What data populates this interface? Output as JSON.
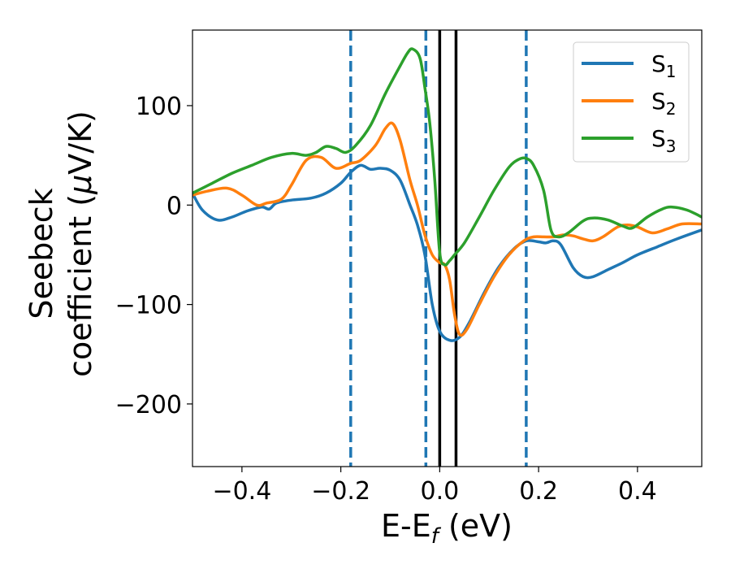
{
  "chart_data": {
    "type": "line",
    "xlabel": "E-E_f (eV)",
    "xlabel_parts": {
      "main": "E-E",
      "sub": "f",
      "tail": " (eV)"
    },
    "ylabel_line1": "Seebeck",
    "ylabel_line2_a": "coefficient  (",
    "ylabel_mu": "μ",
    "ylabel_line2_b": "V/K)",
    "xlim": [
      -0.5,
      0.53
    ],
    "ylim": [
      -263,
      176
    ],
    "xticks": [
      -0.4,
      -0.2,
      0.0,
      0.2,
      0.4
    ],
    "xtick_labels": [
      "−0.4",
      "−0.2",
      "0.0",
      "0.2",
      "0.4"
    ],
    "yticks": [
      100,
      0,
      -100,
      -200
    ],
    "ytick_labels": [
      "100",
      "0",
      "−100",
      "−200"
    ],
    "legend_position": "top-right",
    "vlines": [
      {
        "x": -0.18,
        "style": "dashed",
        "color": "#1f77b4"
      },
      {
        "x": -0.028,
        "style": "dashed",
        "color": "#1f77b4"
      },
      {
        "x": 0.175,
        "style": "dashed",
        "color": "#1f77b4"
      },
      {
        "x": 0.0,
        "style": "solid",
        "color": "#000000"
      },
      {
        "x": 0.033,
        "style": "solid",
        "color": "#000000"
      }
    ],
    "series": [
      {
        "name": "S1",
        "label_main": "S",
        "label_sub": "1",
        "color": "#1f77b4",
        "points": [
          [
            -0.5,
            12
          ],
          [
            -0.48,
            -5
          ],
          [
            -0.45,
            -15
          ],
          [
            -0.42,
            -12
          ],
          [
            -0.39,
            -6
          ],
          [
            -0.36,
            -2
          ],
          [
            -0.345,
            -4
          ],
          [
            -0.33,
            2
          ],
          [
            -0.3,
            5
          ],
          [
            -0.26,
            7
          ],
          [
            -0.23,
            12
          ],
          [
            -0.2,
            22
          ],
          [
            -0.18,
            33
          ],
          [
            -0.16,
            40
          ],
          [
            -0.14,
            36
          ],
          [
            -0.12,
            37
          ],
          [
            -0.1,
            35
          ],
          [
            -0.08,
            25
          ],
          [
            -0.06,
            0
          ],
          [
            -0.045,
            -20
          ],
          [
            -0.03,
            -50
          ],
          [
            -0.015,
            -100
          ],
          [
            0.0,
            -127
          ],
          [
            0.02,
            -136
          ],
          [
            0.04,
            -133
          ],
          [
            0.06,
            -118
          ],
          [
            0.09,
            -88
          ],
          [
            0.12,
            -62
          ],
          [
            0.15,
            -44
          ],
          [
            0.175,
            -36
          ],
          [
            0.2,
            -37
          ],
          [
            0.215,
            -38
          ],
          [
            0.23,
            -36
          ],
          [
            0.245,
            -40
          ],
          [
            0.27,
            -63
          ],
          [
            0.29,
            -72
          ],
          [
            0.31,
            -72
          ],
          [
            0.34,
            -65
          ],
          [
            0.37,
            -58
          ],
          [
            0.4,
            -50
          ],
          [
            0.44,
            -42
          ],
          [
            0.48,
            -34
          ],
          [
            0.53,
            -25
          ]
        ]
      },
      {
        "name": "S2",
        "label_main": "S",
        "label_sub": "2",
        "color": "#ff7f0e",
        "points": [
          [
            -0.5,
            10
          ],
          [
            -0.47,
            14
          ],
          [
            -0.43,
            17
          ],
          [
            -0.4,
            10
          ],
          [
            -0.37,
            0
          ],
          [
            -0.35,
            2
          ],
          [
            -0.32,
            6
          ],
          [
            -0.3,
            20
          ],
          [
            -0.27,
            45
          ],
          [
            -0.24,
            48
          ],
          [
            -0.21,
            37
          ],
          [
            -0.18,
            42
          ],
          [
            -0.16,
            45
          ],
          [
            -0.13,
            60
          ],
          [
            -0.11,
            77
          ],
          [
            -0.095,
            82
          ],
          [
            -0.08,
            65
          ],
          [
            -0.06,
            25
          ],
          [
            -0.045,
            0
          ],
          [
            -0.03,
            -30
          ],
          [
            -0.015,
            -50
          ],
          [
            0.0,
            -58
          ],
          [
            0.01,
            -60
          ],
          [
            0.02,
            -75
          ],
          [
            0.03,
            -110
          ],
          [
            0.04,
            -130
          ],
          [
            0.055,
            -125
          ],
          [
            0.08,
            -100
          ],
          [
            0.11,
            -72
          ],
          [
            0.14,
            -50
          ],
          [
            0.17,
            -36
          ],
          [
            0.19,
            -32
          ],
          [
            0.21,
            -32
          ],
          [
            0.23,
            -32
          ],
          [
            0.25,
            -30
          ],
          [
            0.27,
            -31
          ],
          [
            0.29,
            -34
          ],
          [
            0.31,
            -36
          ],
          [
            0.33,
            -32
          ],
          [
            0.36,
            -22
          ],
          [
            0.38,
            -20
          ],
          [
            0.4,
            -22
          ],
          [
            0.43,
            -28
          ],
          [
            0.46,
            -24
          ],
          [
            0.49,
            -19
          ],
          [
            0.53,
            -19
          ]
        ]
      },
      {
        "name": "S3",
        "label_main": "S",
        "label_sub": "3",
        "color": "#2ca02c",
        "points": [
          [
            -0.5,
            12
          ],
          [
            -0.46,
            22
          ],
          [
            -0.42,
            32
          ],
          [
            -0.38,
            40
          ],
          [
            -0.34,
            48
          ],
          [
            -0.3,
            52
          ],
          [
            -0.27,
            50
          ],
          [
            -0.25,
            53
          ],
          [
            -0.23,
            59
          ],
          [
            -0.21,
            57
          ],
          [
            -0.19,
            53
          ],
          [
            -0.17,
            60
          ],
          [
            -0.14,
            80
          ],
          [
            -0.11,
            112
          ],
          [
            -0.08,
            140
          ],
          [
            -0.065,
            153
          ],
          [
            -0.055,
            157
          ],
          [
            -0.04,
            148
          ],
          [
            -0.03,
            118
          ],
          [
            -0.02,
            82
          ],
          [
            -0.01,
            25
          ],
          [
            0.0,
            -48
          ],
          [
            0.01,
            -60
          ],
          [
            0.02,
            -56
          ],
          [
            0.03,
            -50
          ],
          [
            0.05,
            -38
          ],
          [
            0.08,
            -12
          ],
          [
            0.11,
            15
          ],
          [
            0.14,
            38
          ],
          [
            0.16,
            46
          ],
          [
            0.175,
            47
          ],
          [
            0.19,
            40
          ],
          [
            0.21,
            15
          ],
          [
            0.225,
            -25
          ],
          [
            0.24,
            -32
          ],
          [
            0.26,
            -28
          ],
          [
            0.29,
            -16
          ],
          [
            0.31,
            -13
          ],
          [
            0.34,
            -15
          ],
          [
            0.37,
            -21
          ],
          [
            0.39,
            -23
          ],
          [
            0.42,
            -12
          ],
          [
            0.45,
            -4
          ],
          [
            0.47,
            -2
          ],
          [
            0.5,
            -5
          ],
          [
            0.53,
            -12
          ]
        ]
      }
    ]
  }
}
